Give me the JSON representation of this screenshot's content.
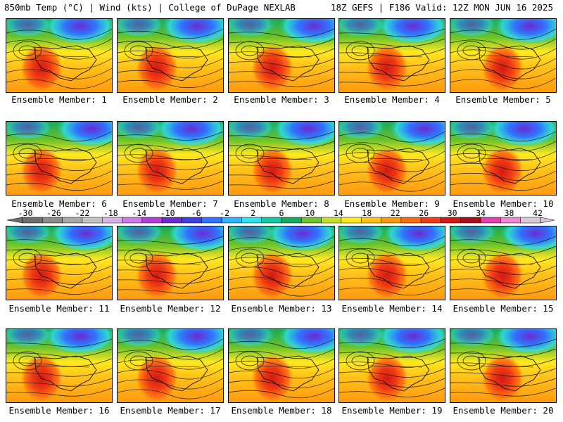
{
  "header": {
    "left": "850mb Temp (°C) | Wind (kts) | College of DuPage NEXLAB",
    "right": "18Z GEFS | F186 Valid: 12Z MON JUN 16 2025"
  },
  "panels": [
    {
      "label": "Ensemble Member: 1"
    },
    {
      "label": "Ensemble Member: 2"
    },
    {
      "label": "Ensemble Member: 3"
    },
    {
      "label": "Ensemble Member: 4"
    },
    {
      "label": "Ensemble Member: 5"
    },
    {
      "label": "Ensemble Member: 6"
    },
    {
      "label": "Ensemble Member: 7"
    },
    {
      "label": "Ensemble Member: 8"
    },
    {
      "label": "Ensemble Member: 9"
    },
    {
      "label": "Ensemble Member: 10"
    },
    {
      "label": "Ensemble Member: 11"
    },
    {
      "label": "Ensemble Member: 12"
    },
    {
      "label": "Ensemble Member: 13"
    },
    {
      "label": "Ensemble Member: 14"
    },
    {
      "label": "Ensemble Member: 15"
    },
    {
      "label": "Ensemble Member: 16"
    },
    {
      "label": "Ensemble Member: 17"
    },
    {
      "label": "Ensemble Member: 18"
    },
    {
      "label": "Ensemble Member: 19"
    },
    {
      "label": "Ensemble Member: 20"
    }
  ],
  "colorbar": {
    "ticks": [
      "-30",
      "-26",
      "-22",
      "-18",
      "-14",
      "-10",
      "-6",
      "-2",
      "2",
      "6",
      "10",
      "14",
      "18",
      "22",
      "26",
      "30",
      "34",
      "38",
      "42"
    ],
    "colors": [
      "#6e6e6e",
      "#8c8c8c",
      "#a8a8a8",
      "#c3c3c3",
      "#d9b3e6",
      "#c97be6",
      "#b03ed8",
      "#6a2bd0",
      "#3d3fe0",
      "#2f74ff",
      "#2fb2ff",
      "#2fe0ee",
      "#18c8a0",
      "#18a85a",
      "#6cc32a",
      "#c8df2a",
      "#ffe820",
      "#ffc21a",
      "#ff9a10",
      "#ff6a10",
      "#f03a14",
      "#d01a14",
      "#a8101a",
      "#e040b0",
      "#ee88d0",
      "#d8c8d8"
    ]
  }
}
